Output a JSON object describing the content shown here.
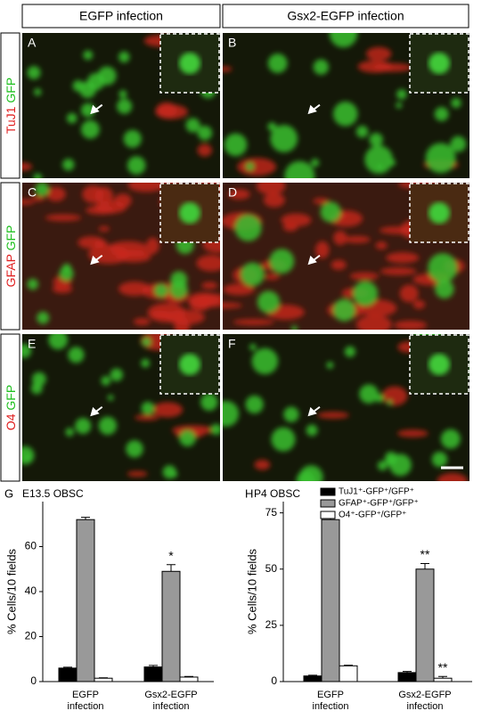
{
  "column_headers": [
    "EGFP infection",
    "Gsx2-EGFP infection"
  ],
  "row_labels": [
    {
      "marker": "TuJ1",
      "reporter": "GFP"
    },
    {
      "marker": "GFAP",
      "reporter": "GFP"
    },
    {
      "marker": "O4",
      "reporter": "GFP"
    }
  ],
  "panel_letters": [
    "A",
    "B",
    "C",
    "D",
    "E",
    "F"
  ],
  "chart_data": [
    {
      "type": "bar",
      "letter": "G",
      "title": "E13.5 OBSC",
      "y_label": "% Cells/10 fields",
      "categories": [
        "EGFP infection",
        "Gsx2-EGFP infection"
      ],
      "ylim": [
        0,
        80
      ],
      "yticks": [
        0,
        20,
        40,
        60
      ],
      "series": [
        {
          "color": "#000000",
          "values": [
            6,
            6.5
          ],
          "errors": [
            0.4,
            0.7
          ]
        },
        {
          "color": "#999999",
          "values": [
            72,
            49
          ],
          "errors": [
            1,
            3
          ],
          "marks": [
            null,
            "*"
          ]
        },
        {
          "color": "#ffffff",
          "values": [
            1.5,
            2
          ],
          "errors": [
            0.2,
            0.3
          ]
        }
      ]
    },
    {
      "type": "bar",
      "letter": "H",
      "title": "P4 OBSC",
      "y_label": "% Cells/10 fields",
      "categories": [
        "EGFP infection",
        "Gsx2-EGFP infection"
      ],
      "ylim": [
        0,
        80
      ],
      "yticks": [
        0,
        25,
        50,
        75
      ],
      "series": [
        {
          "name": "TuJ1⁺-GFP⁺/GFP⁺",
          "color": "#000000",
          "values": [
            2.5,
            4
          ],
          "errors": [
            0.3,
            0.5
          ]
        },
        {
          "name": "GFAP⁺-GFP⁺/GFP⁺",
          "color": "#999999",
          "values": [
            72,
            50
          ],
          "errors": [
            2.5,
            2.5
          ],
          "marks": [
            null,
            "**"
          ]
        },
        {
          "name": "O4⁺-GFP⁺/GFP⁺",
          "color": "#ffffff",
          "values": [
            7,
            1.5
          ],
          "errors": [
            0.3,
            0.8
          ],
          "marks": [
            null,
            "**"
          ]
        }
      ]
    }
  ]
}
